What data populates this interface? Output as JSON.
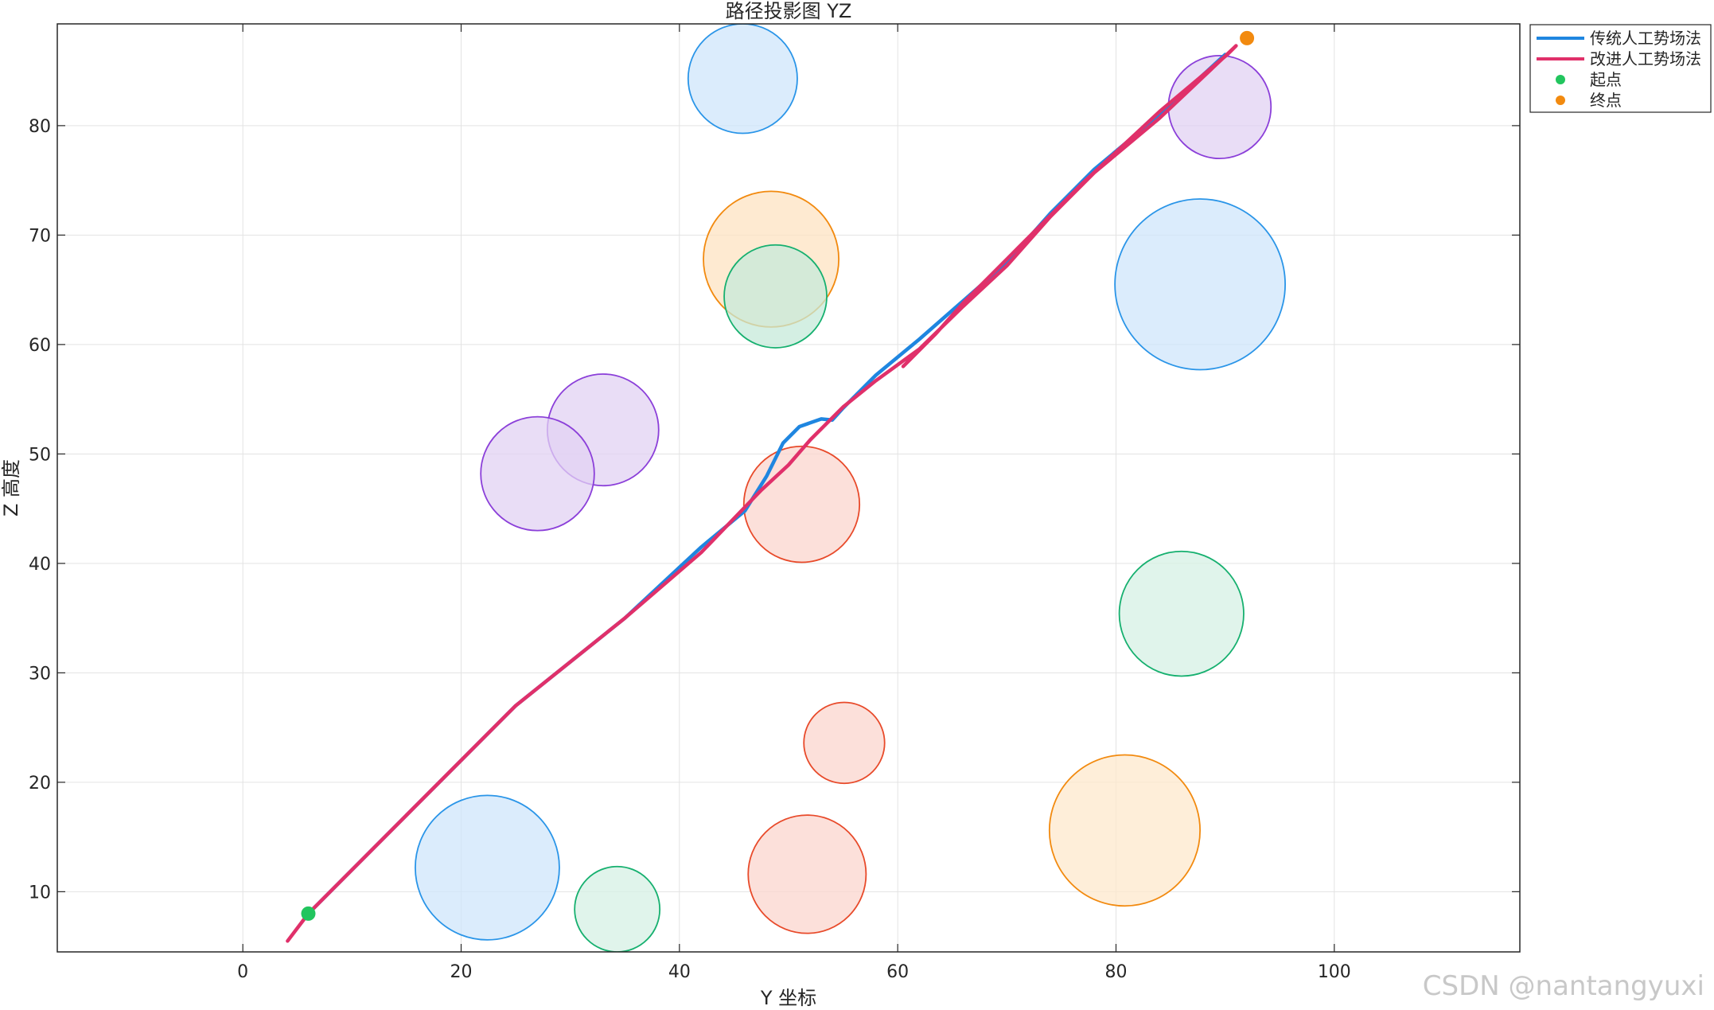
{
  "chart_data": {
    "type": "line",
    "title": "路径投影图 YZ",
    "xlabel": "Y 坐标",
    "ylabel": "Z 高度",
    "xlim": [
      -17,
      117
    ],
    "ylim": [
      4.5,
      89.3
    ],
    "xticks": [
      0,
      20,
      40,
      60,
      80,
      100
    ],
    "yticks": [
      10,
      20,
      30,
      40,
      50,
      60,
      70,
      80
    ],
    "grid": true,
    "legend_position": "top-right outside",
    "series": [
      {
        "name": "传统人工势场法",
        "color": "#1f86e0",
        "points": [
          [
            6,
            8
          ],
          [
            15,
            17
          ],
          [
            25,
            27
          ],
          [
            35,
            35
          ],
          [
            42,
            41.5
          ],
          [
            46,
            44.8
          ],
          [
            48,
            48
          ],
          [
            49.5,
            51
          ],
          [
            51,
            52.5
          ],
          [
            53,
            53.2
          ],
          [
            54,
            53.1
          ],
          [
            55,
            54.2
          ],
          [
            58,
            57.2
          ],
          [
            62,
            60.5
          ],
          [
            66,
            64
          ],
          [
            70,
            67.5
          ],
          [
            74,
            72
          ],
          [
            78,
            76
          ],
          [
            84,
            81
          ],
          [
            90,
            86.5
          ]
        ]
      },
      {
        "name": "改进人工势场法",
        "color": "#e0306a",
        "points": [
          [
            4.1,
            5.5
          ],
          [
            6,
            8
          ],
          [
            15,
            17
          ],
          [
            25,
            27
          ],
          [
            35,
            35
          ],
          [
            42,
            41
          ],
          [
            47.5,
            46.7
          ],
          [
            50,
            49
          ],
          [
            52,
            51.3
          ],
          [
            55,
            54.3
          ],
          [
            58,
            56.7
          ],
          [
            62,
            59.6
          ],
          [
            66,
            63.5
          ],
          [
            70,
            67.2
          ],
          [
            74,
            71.7
          ],
          [
            78,
            75.7
          ],
          [
            84,
            80.7
          ],
          [
            91,
            87.3
          ],
          [
            90.2,
            86.5
          ],
          [
            84,
            81.3
          ],
          [
            77,
            74.8
          ],
          [
            71,
            68.8
          ],
          [
            66,
            63.8
          ],
          [
            63.5,
            61
          ],
          [
            60.5,
            58
          ]
        ]
      }
    ],
    "markers": [
      {
        "name": "起点",
        "x": 6,
        "y": 8,
        "color": "#22c55e"
      },
      {
        "name": "终点",
        "x": 92,
        "y": 88,
        "color": "#f28a0f"
      }
    ],
    "obstacles": [
      {
        "cy": 45.8,
        "cz": 84.3,
        "r": 5.0,
        "color": "#2a95e8",
        "fill": "#cfe5fb"
      },
      {
        "cy": 48.4,
        "cz": 67.8,
        "r": 6.2,
        "color": "#f28a0f",
        "fill": "#fde3c2"
      },
      {
        "cy": 48.8,
        "cz": 64.4,
        "r": 4.7,
        "color": "#16b06f",
        "fill": "#c5ead9"
      },
      {
        "cy": 89.5,
        "cz": 81.7,
        "r": 4.7,
        "color": "#8b3fd9",
        "fill": "#e2d2f3"
      },
      {
        "cy": 87.7,
        "cz": 65.5,
        "r": 7.8,
        "color": "#2a95e8",
        "fill": "#cfe5fb"
      },
      {
        "cy": 33.0,
        "cz": 52.2,
        "r": 5.1,
        "color": "#8b3fd9",
        "fill": "#e2d2f3"
      },
      {
        "cy": 27.0,
        "cz": 48.2,
        "r": 5.2,
        "color": "#8b3fd9",
        "fill": "#e2d2f3"
      },
      {
        "cy": 51.2,
        "cz": 45.4,
        "r": 5.3,
        "color": "#e84a2a",
        "fill": "#fbd6cd"
      },
      {
        "cy": 86.0,
        "cz": 35.4,
        "r": 5.7,
        "color": "#16b06f",
        "fill": "#d5f0e4"
      },
      {
        "cy": 55.1,
        "cz": 23.6,
        "r": 3.7,
        "color": "#e84a2a",
        "fill": "#fbd6cd"
      },
      {
        "cy": 80.8,
        "cz": 15.6,
        "r": 6.9,
        "color": "#f28a0f",
        "fill": "#fde8cc"
      },
      {
        "cy": 22.4,
        "cz": 12.2,
        "r": 6.6,
        "color": "#2a95e8",
        "fill": "#cfe5fb"
      },
      {
        "cy": 51.7,
        "cz": 11.6,
        "r": 5.4,
        "color": "#e84a2a",
        "fill": "#fbd6cd"
      },
      {
        "cy": 34.3,
        "cz": 8.4,
        "r": 3.9,
        "color": "#16b06f",
        "fill": "#d5f0e4"
      }
    ]
  },
  "watermark": "CSDN @nantangyuxi"
}
